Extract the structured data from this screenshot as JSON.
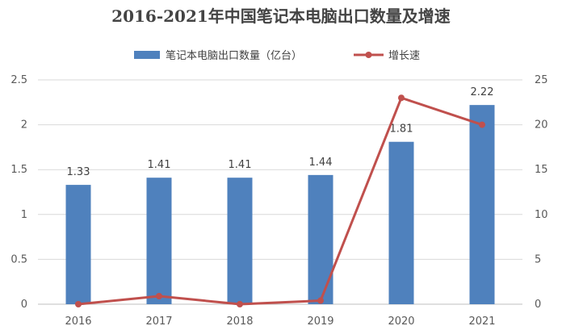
{
  "chart_data": {
    "type": "bar",
    "title": "2016-2021年中国笔记本电脑出口数量及增速",
    "categories": [
      "2016",
      "2017",
      "2018",
      "2019",
      "2020",
      "2021"
    ],
    "series": [
      {
        "name": "笔记本电脑出口数量（亿台）",
        "type": "bar",
        "axis": "left",
        "color": "#4f81bd",
        "values": [
          1.33,
          1.41,
          1.41,
          1.44,
          1.81,
          2.22
        ],
        "labels": [
          "1.33",
          "1.41",
          "1.41",
          "1.44",
          "1.81",
          "2.22"
        ]
      },
      {
        "name": "增长速",
        "type": "line",
        "axis": "right",
        "color": "#c0504d",
        "values": [
          0,
          0.9,
          0,
          0.4,
          23,
          20
        ]
      }
    ],
    "y_left": {
      "min": 0,
      "max": 2.5,
      "ticks": [
        "0",
        "0.5",
        "1",
        "1.5",
        "2",
        "2.5"
      ]
    },
    "y_right": {
      "min": 0,
      "max": 25,
      "ticks": [
        "0",
        "5",
        "10",
        "15",
        "20",
        "25"
      ]
    },
    "grid": true,
    "legend_position": "top"
  }
}
